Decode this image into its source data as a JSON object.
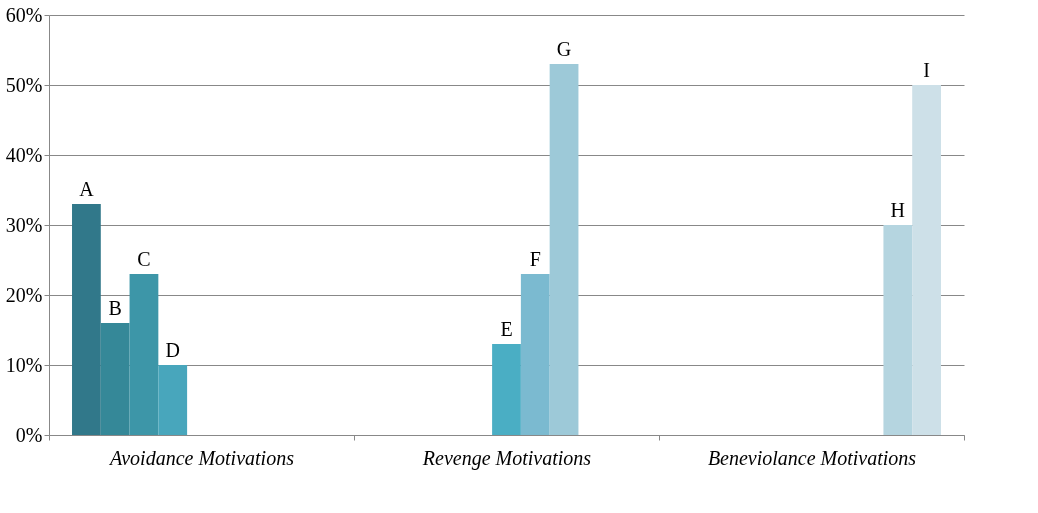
{
  "chart_data": {
    "type": "bar",
    "categories": [
      "Avoidance Motivations",
      "Revenge Motivations",
      "Beneviolance Motivations"
    ],
    "series": [
      {
        "name": "A",
        "color": "#31788a",
        "values": [
          33,
          null,
          null
        ]
      },
      {
        "name": "B",
        "color": "#358898",
        "values": [
          16,
          null,
          null
        ]
      },
      {
        "name": "C",
        "color": "#3d96a8",
        "values": [
          23,
          null,
          null
        ]
      },
      {
        "name": "D",
        "color": "#48a6bc",
        "values": [
          10,
          null,
          null
        ]
      },
      {
        "name": "E",
        "color": "#4aaec4",
        "values": [
          null,
          13,
          null
        ]
      },
      {
        "name": "F",
        "color": "#7bbad0",
        "values": [
          null,
          23,
          null
        ]
      },
      {
        "name": "G",
        "color": "#9dc9d8",
        "values": [
          null,
          53,
          null
        ]
      },
      {
        "name": "H",
        "color": "#b5d5e0",
        "values": [
          null,
          null,
          30
        ]
      },
      {
        "name": "I",
        "color": "#cde0e8",
        "values": [
          null,
          null,
          50
        ]
      }
    ],
    "ylim": [
      0,
      60
    ],
    "yticks": [
      {
        "value": 0,
        "label": "0%"
      },
      {
        "value": 10,
        "label": "10%"
      },
      {
        "value": 20,
        "label": "20%"
      },
      {
        "value": 30,
        "label": "30%"
      },
      {
        "value": 40,
        "label": "40%"
      },
      {
        "value": 50,
        "label": "50%"
      },
      {
        "value": 60,
        "label": "60%"
      }
    ],
    "grid": "y",
    "legend": false
  }
}
